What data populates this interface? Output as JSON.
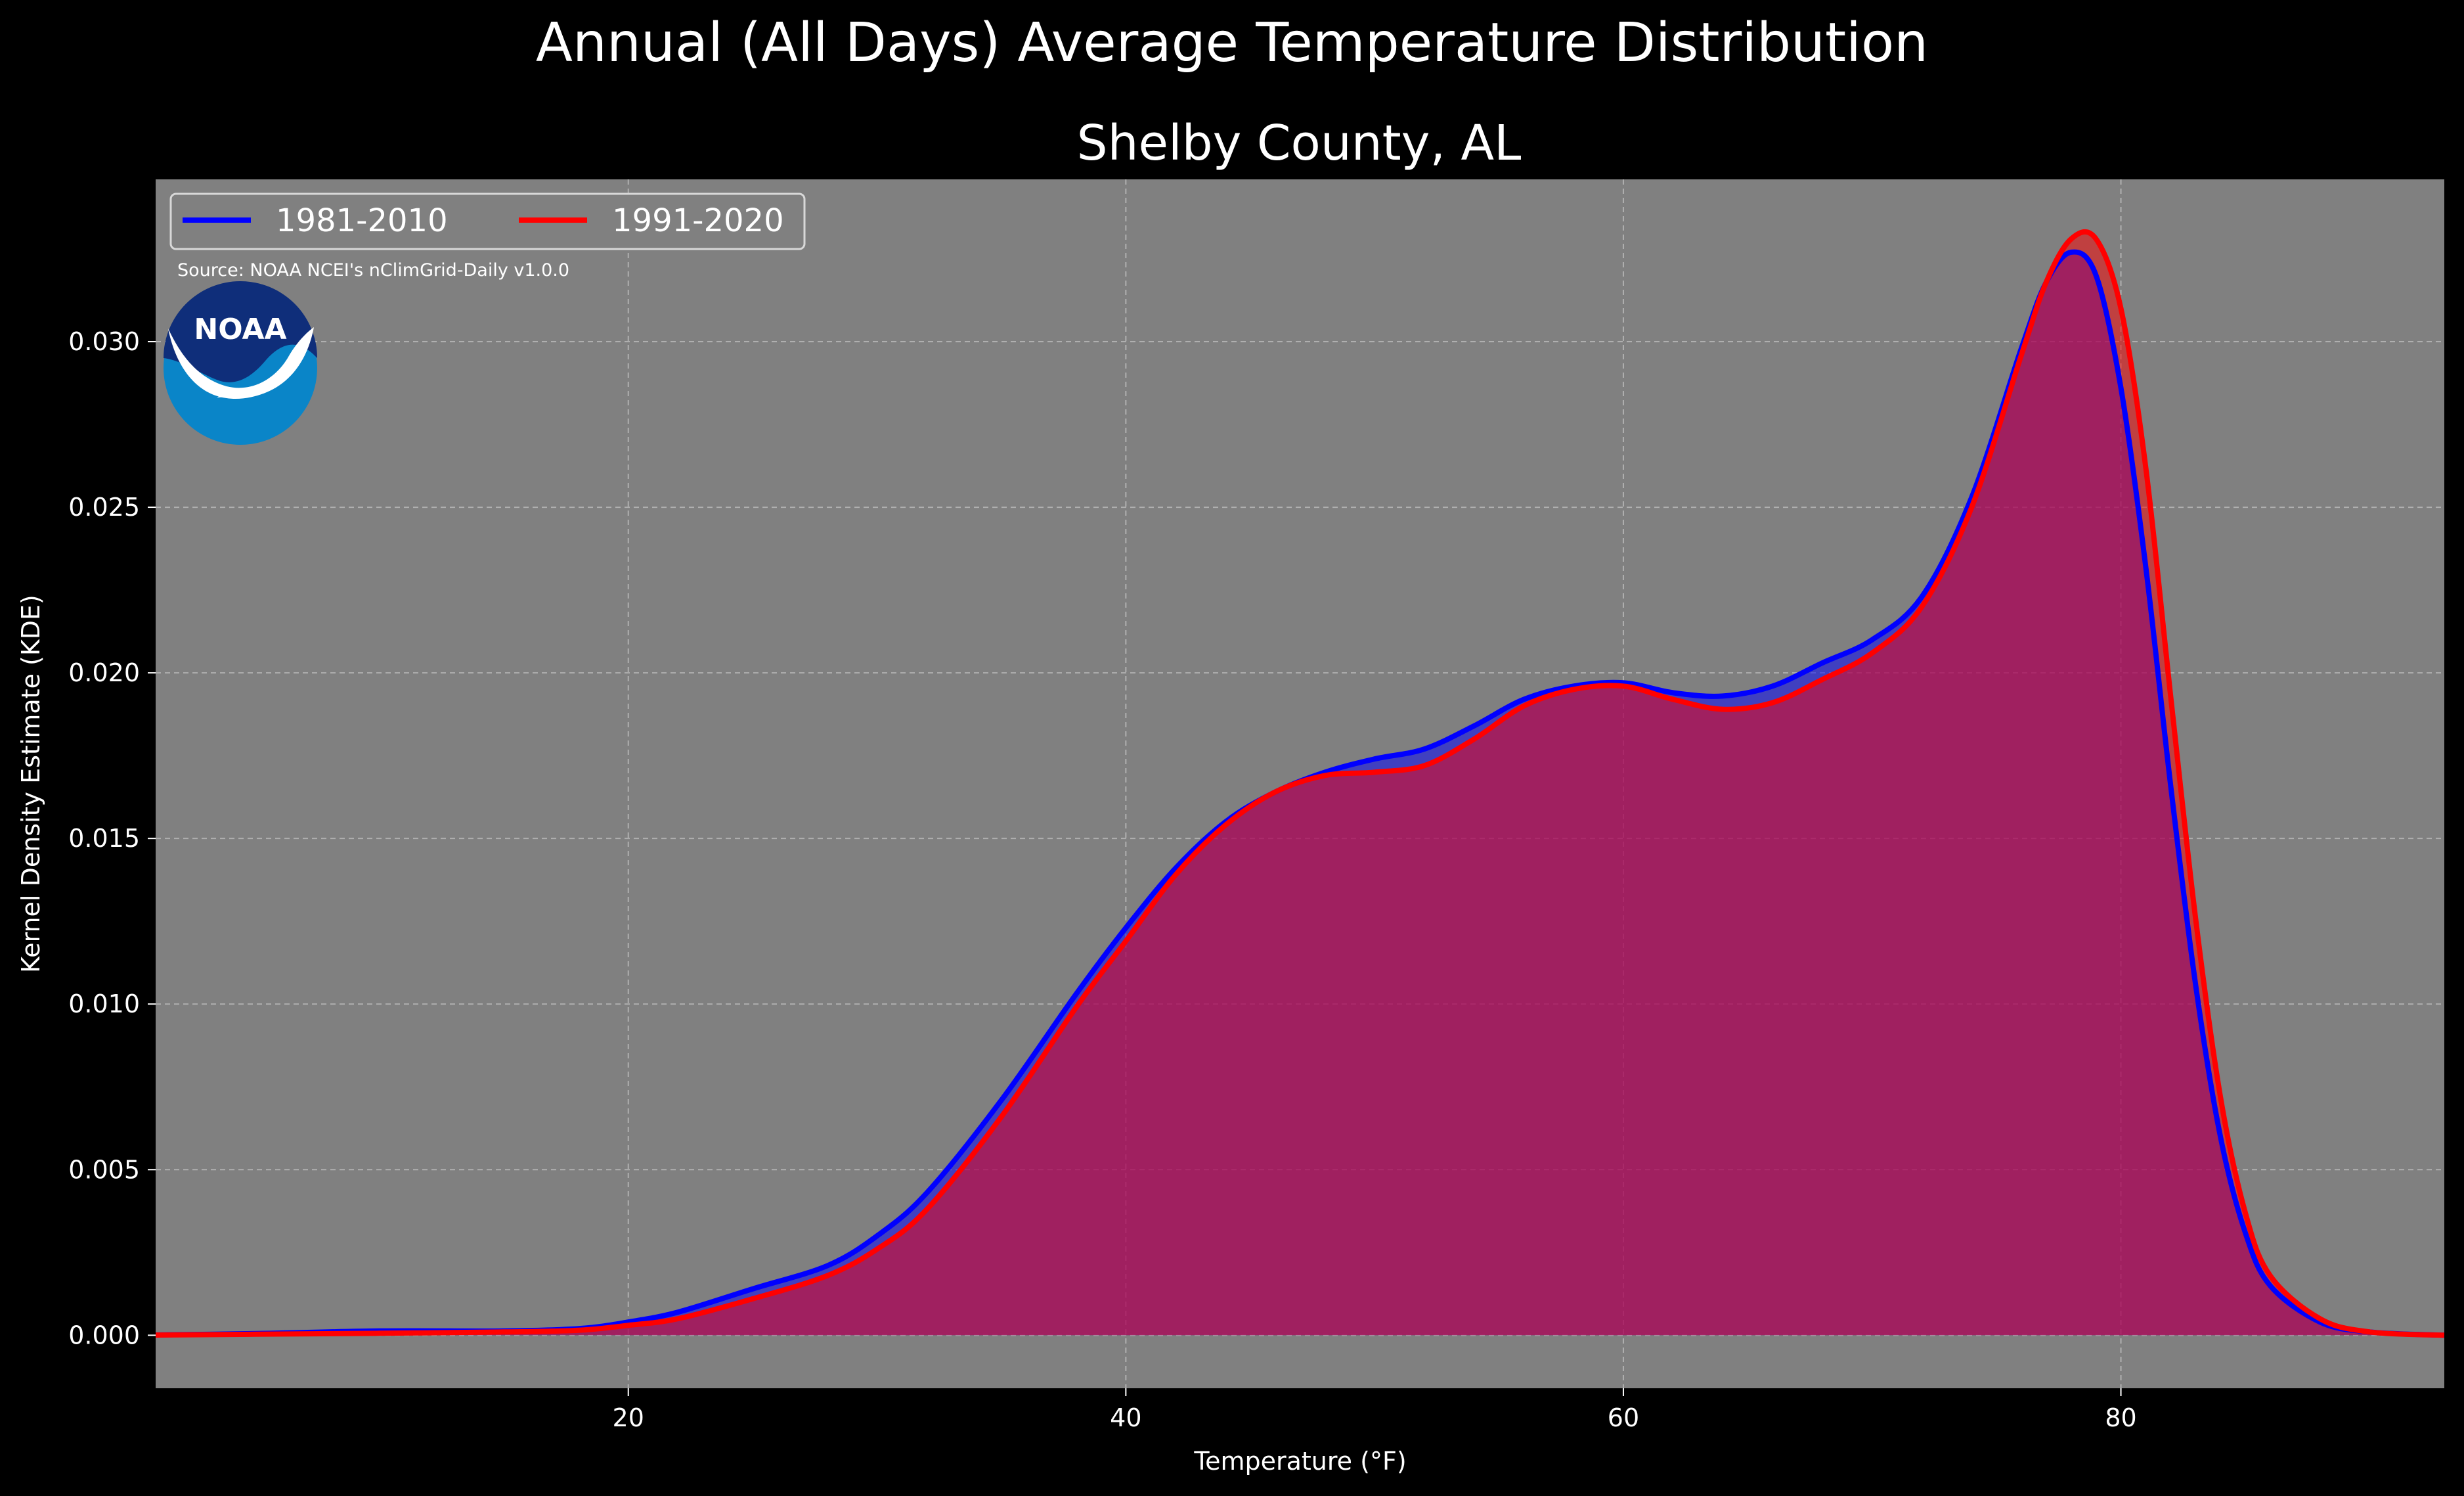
{
  "chart_data": {
    "type": "area",
    "title": "Annual (All Days) Average Temperature Distribution",
    "subtitle": "Shelby County, AL",
    "xlabel": "Temperature (°F)",
    "ylabel": "Kernel Density Estimate (KDE)",
    "source": "Source: NOAA NCEI's nClimGrid-Daily v1.0.0",
    "logo_text": "NOAA",
    "xlim": [
      1,
      93
    ],
    "ylim": [
      -0.0016,
      0.0349
    ],
    "xticks": [
      20,
      40,
      60,
      80
    ],
    "yticks": [
      0.0,
      0.005,
      0.01,
      0.015,
      0.02,
      0.025,
      0.03
    ],
    "grid": true,
    "legend_position": "top-left",
    "background": "#808080",
    "series": [
      {
        "name": "1981-2010",
        "color": "#0000ff",
        "x": [
          0,
          5,
          10,
          15,
          18,
          20,
          22,
          25,
          28,
          30,
          32,
          35,
          38,
          40,
          42,
          44,
          46,
          48,
          50,
          52,
          54,
          56,
          58,
          60,
          62,
          64,
          66,
          68,
          70,
          72,
          74,
          76,
          77,
          78,
          79,
          80,
          81,
          82,
          83,
          84,
          85,
          86,
          88,
          90,
          93
        ],
        "y": [
          0.0,
          5e-05,
          0.00013,
          0.00013,
          0.0002,
          0.0004,
          0.0007,
          0.0014,
          0.0021,
          0.003,
          0.0043,
          0.0071,
          0.0103,
          0.0123,
          0.0141,
          0.0155,
          0.0164,
          0.017,
          0.0174,
          0.0177,
          0.0184,
          0.0192,
          0.0196,
          0.0197,
          0.0194,
          0.0193,
          0.0196,
          0.0203,
          0.021,
          0.0223,
          0.0253,
          0.0298,
          0.0318,
          0.0327,
          0.032,
          0.0286,
          0.0232,
          0.0166,
          0.0106,
          0.006,
          0.0031,
          0.0015,
          0.0004,
          0.0001,
          0.0
        ]
      },
      {
        "name": "1991-2020",
        "color": "#ff0000",
        "x": [
          0,
          5,
          10,
          15,
          18,
          20,
          22,
          25,
          28,
          30,
          32,
          35,
          38,
          40,
          42,
          44,
          46,
          48,
          50,
          52,
          54,
          56,
          58,
          60,
          62,
          64,
          66,
          68,
          70,
          72,
          74,
          76,
          77,
          78,
          79,
          80,
          81,
          82,
          83,
          84,
          85,
          86,
          88,
          90,
          93
        ],
        "y": [
          0.0,
          3e-05,
          6e-05,
          0.0001,
          0.00015,
          0.0003,
          0.0005,
          0.0011,
          0.0018,
          0.0026,
          0.0038,
          0.0066,
          0.0099,
          0.0119,
          0.0139,
          0.0154,
          0.0164,
          0.0169,
          0.017,
          0.0172,
          0.018,
          0.019,
          0.0195,
          0.0196,
          0.0192,
          0.0189,
          0.0191,
          0.0198,
          0.0206,
          0.022,
          0.025,
          0.0296,
          0.0318,
          0.0331,
          0.0331,
          0.031,
          0.0262,
          0.0193,
          0.0126,
          0.0072,
          0.0037,
          0.0018,
          0.0005,
          0.0001,
          0.0
        ]
      }
    ]
  }
}
